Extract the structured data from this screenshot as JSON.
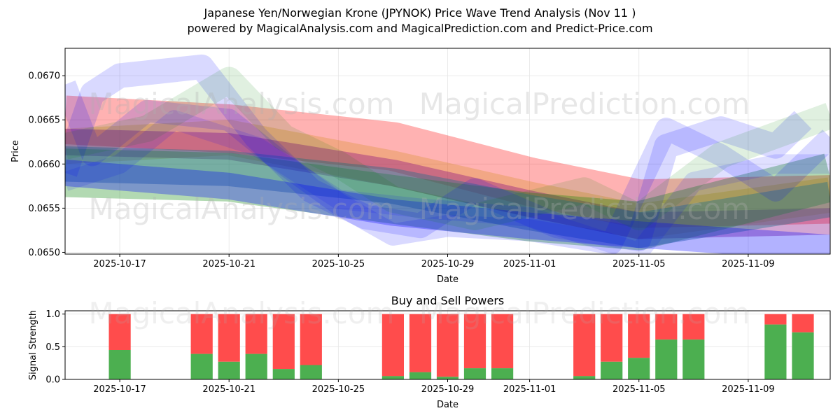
{
  "title_line1": "Japanese Yen/Norwegian Krone (JPYNOK) Price Wave Trend Analysis (Nov 11 )",
  "title_line2": "powered by MagicalAnalysis.com and MagicalPrediction.com and Predict-Price.com",
  "watermarks": [
    "MagicalAnalysis.com",
    "MagicalPrediction.com"
  ],
  "colors": {
    "red": "#ff0000",
    "green": "#008000",
    "blue": "#0000ff",
    "purple": "#800080",
    "buy": "#4caf50",
    "sell": "#ff4c4c"
  },
  "chart_data": [
    {
      "type": "line",
      "title": "",
      "xlabel": "Date",
      "ylabel": "Price",
      "x_domain": [
        "2025-10-15",
        "2025-11-12"
      ],
      "ylim": [
        0.06498,
        0.06731
      ],
      "yticks": [
        0.065,
        0.0655,
        0.066,
        0.0665,
        0.067
      ],
      "ytick_labels": [
        "0.0650",
        "0.0655",
        "0.0660",
        "0.0665",
        "0.0670"
      ],
      "xtick_dates": [
        "2025-10-17",
        "2025-10-21",
        "2025-10-25",
        "2025-10-29",
        "2025-11-01",
        "2025-11-05",
        "2025-11-09"
      ],
      "xtick_labels": [
        "2025-10-17",
        "2025-10-21",
        "2025-10-25",
        "2025-10-29",
        "2025-11-01",
        "2025-11-05",
        "2025-11-09"
      ],
      "grid": true,
      "series": [
        {
          "name": "red band",
          "color": "red",
          "width": 0.00055,
          "opacity": 0.3,
          "points": [
            [
              "2025-10-15",
              0.0665
            ],
            [
              "2025-10-21",
              0.0664
            ],
            [
              "2025-10-27",
              0.0662
            ],
            [
              "2025-11-01",
              0.0658
            ],
            [
              "2025-11-05",
              0.06555
            ],
            [
              "2025-11-12",
              0.0656
            ]
          ]
        },
        {
          "name": "orange band",
          "color": "#cc8800",
          "width": 0.0004,
          "opacity": 0.25,
          "points": [
            [
              "2025-10-15",
              0.0662
            ],
            [
              "2025-10-21",
              0.0663
            ],
            [
              "2025-10-27",
              0.06595
            ],
            [
              "2025-11-01",
              0.0656
            ],
            [
              "2025-11-05",
              0.06535
            ],
            [
              "2025-11-12",
              0.06565
            ]
          ]
        },
        {
          "name": "purple band",
          "color": "purple",
          "width": 0.0003,
          "opacity": 0.35,
          "points": [
            [
              "2025-10-15",
              0.06625
            ],
            [
              "2025-10-21",
              0.0662
            ],
            [
              "2025-10-27",
              0.0659
            ],
            [
              "2025-11-01",
              0.06555
            ],
            [
              "2025-11-05",
              0.0653
            ],
            [
              "2025-11-12",
              0.06535
            ]
          ]
        },
        {
          "name": "green band",
          "color": "green",
          "width": 0.00055,
          "opacity": 0.3,
          "points": [
            [
              "2025-10-15",
              0.0659
            ],
            [
              "2025-10-21",
              0.06585
            ],
            [
              "2025-10-27",
              0.0656
            ],
            [
              "2025-11-01",
              0.0654
            ],
            [
              "2025-11-05",
              0.0653
            ],
            [
              "2025-11-12",
              0.06585
            ]
          ]
        },
        {
          "name": "teal band",
          "color": "#1f6f8b",
          "width": 0.0004,
          "opacity": 0.4,
          "points": [
            [
              "2025-10-15",
              0.066
            ],
            [
              "2025-10-21",
              0.06595
            ],
            [
              "2025-10-27",
              0.06575
            ],
            [
              "2025-11-01",
              0.06545
            ],
            [
              "2025-11-05",
              0.06525
            ],
            [
              "2025-11-12",
              0.0656
            ]
          ]
        },
        {
          "name": "blue band",
          "color": "blue",
          "width": 0.0003,
          "opacity": 0.3,
          "points": [
            [
              "2025-10-15",
              0.0659
            ],
            [
              "2025-10-21",
              0.06575
            ],
            [
              "2025-10-27",
              0.06545
            ],
            [
              "2025-11-01",
              0.0653
            ],
            [
              "2025-11-05",
              0.0652
            ],
            [
              "2025-11-12",
              0.06505
            ]
          ]
        },
        {
          "name": "blue wave 1",
          "color": "blue",
          "width": 0.00028,
          "opacity": 0.15,
          "points": [
            [
              "2025-10-15",
              0.0659
            ],
            [
              "2025-10-16",
              0.0668
            ],
            [
              "2025-10-17",
              0.067
            ],
            [
              "2025-10-20",
              0.0671
            ],
            [
              "2025-10-22",
              0.0663
            ],
            [
              "2025-10-24",
              0.0657
            ],
            [
              "2025-10-26",
              0.0654
            ],
            [
              "2025-10-28",
              0.0653
            ],
            [
              "2025-10-30",
              0.0657
            ],
            [
              "2025-11-02",
              0.0653
            ],
            [
              "2025-11-05",
              0.06515
            ],
            [
              "2025-11-06",
              0.0662
            ],
            [
              "2025-11-08",
              0.0664
            ],
            [
              "2025-11-10",
              0.0662
            ],
            [
              "2025-11-11",
              0.0665
            ]
          ]
        },
        {
          "name": "blue wave 2",
          "color": "blue",
          "width": 0.00025,
          "opacity": 0.15,
          "points": [
            [
              "2025-10-15",
              0.0669
            ],
            [
              "2025-10-16",
              0.0661
            ],
            [
              "2025-10-18",
              0.0666
            ],
            [
              "2025-10-21",
              0.0665
            ],
            [
              "2025-10-23",
              0.066
            ],
            [
              "2025-10-25",
              0.06555
            ],
            [
              "2025-10-27",
              0.0652
            ],
            [
              "2025-10-29",
              0.0653
            ],
            [
              "2025-11-01",
              0.06525
            ],
            [
              "2025-11-04",
              0.0651
            ],
            [
              "2025-11-06",
              0.0664
            ],
            [
              "2025-11-08",
              0.0661
            ],
            [
              "2025-11-10",
              0.0657
            ],
            [
              "2025-11-12",
              0.0663
            ]
          ]
        },
        {
          "name": "green wave",
          "color": "green",
          "width": 0.0003,
          "opacity": 0.12,
          "points": [
            [
              "2025-10-15",
              0.0662
            ],
            [
              "2025-10-18",
              0.0664
            ],
            [
              "2025-10-21",
              0.06695
            ],
            [
              "2025-10-23",
              0.0663
            ],
            [
              "2025-10-25",
              0.066
            ],
            [
              "2025-10-27",
              0.0656
            ],
            [
              "2025-10-30",
              0.0654
            ],
            [
              "2025-11-03",
              0.0657
            ],
            [
              "2025-11-05",
              0.0654
            ],
            [
              "2025-11-08",
              0.0661
            ],
            [
              "2025-11-12",
              0.06655
            ]
          ]
        },
        {
          "name": "blue wave 3",
          "color": "blue",
          "width": 0.00022,
          "opacity": 0.12,
          "points": [
            [
              "2025-10-15",
              0.0658
            ],
            [
              "2025-10-17",
              0.066
            ],
            [
              "2025-10-19",
              0.0665
            ],
            [
              "2025-10-22",
              0.0662
            ],
            [
              "2025-10-25",
              0.0656
            ],
            [
              "2025-10-28",
              0.0655
            ],
            [
              "2025-11-01",
              0.0654
            ],
            [
              "2025-11-05",
              0.065
            ],
            [
              "2025-11-07",
              0.0658
            ],
            [
              "2025-11-10",
              0.066
            ],
            [
              "2025-11-12",
              0.066
            ]
          ]
        }
      ]
    },
    {
      "type": "bar",
      "title": "Buy and Sell Powers",
      "xlabel": "",
      "ylabel": "Signal Strength",
      "x_domain": [
        "2025-10-15",
        "2025-11-12"
      ],
      "ylim": [
        0,
        1.05
      ],
      "yticks": [
        0.0,
        0.5,
        1.0
      ],
      "ytick_labels": [
        "0.0",
        "0.5",
        "1.0"
      ],
      "xtick_dates": [
        "2025-10-17",
        "2025-10-21",
        "2025-10-25",
        "2025-10-29",
        "2025-11-01",
        "2025-11-05",
        "2025-11-09"
      ],
      "xtick_labels": [
        "2025-10-17",
        "2025-10-21",
        "2025-10-25",
        "2025-10-29",
        "2025-11-01",
        "2025-11-05",
        "2025-11-09"
      ],
      "grid": true,
      "series_names": [
        "Buy",
        "Sell"
      ],
      "bars": [
        {
          "date": "2025-10-17",
          "buy": 0.45
        },
        {
          "date": "2025-10-20",
          "buy": 0.39
        },
        {
          "date": "2025-10-21",
          "buy": 0.27
        },
        {
          "date": "2025-10-22",
          "buy": 0.39
        },
        {
          "date": "2025-10-23",
          "buy": 0.16
        },
        {
          "date": "2025-10-24",
          "buy": 0.22
        },
        {
          "date": "2025-10-27",
          "buy": 0.05
        },
        {
          "date": "2025-10-28",
          "buy": 0.11
        },
        {
          "date": "2025-10-29",
          "buy": 0.04
        },
        {
          "date": "2025-10-30",
          "buy": 0.17
        },
        {
          "date": "2025-10-31",
          "buy": 0.17
        },
        {
          "date": "2025-11-03",
          "buy": 0.05
        },
        {
          "date": "2025-11-04",
          "buy": 0.27
        },
        {
          "date": "2025-11-05",
          "buy": 0.33
        },
        {
          "date": "2025-11-06",
          "buy": 0.61
        },
        {
          "date": "2025-11-07",
          "buy": 0.61
        },
        {
          "date": "2025-11-10",
          "buy": 0.84
        },
        {
          "date": "2025-11-11",
          "buy": 0.72
        }
      ]
    }
  ]
}
